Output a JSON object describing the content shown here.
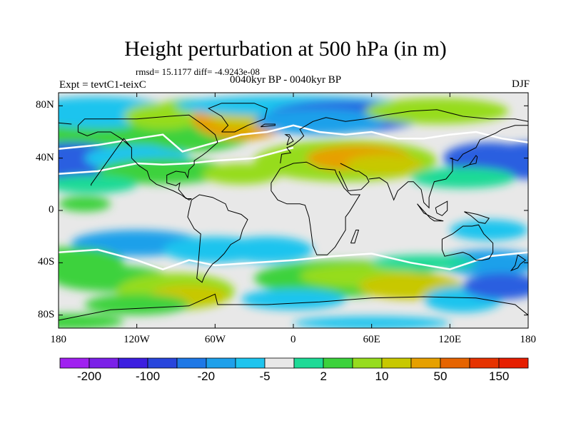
{
  "title": "Height perturbation at 500 hPa (in m)",
  "stats": "rmsd= 15.1177  diff= -4.9243e-08",
  "expt": "Expt = tevtC1-teixC",
  "period": "0040kyr BP - 0040kyr BP",
  "season": "DJF",
  "map": {
    "projection": "cylindrical equidistant",
    "lon_range": [
      -180,
      180
    ],
    "lat_range": [
      -90,
      90
    ],
    "x_ticks": [
      {
        "lon": -180,
        "label": "180"
      },
      {
        "lon": -120,
        "label": "120W"
      },
      {
        "lon": -60,
        "label": "60W"
      },
      {
        "lon": 0,
        "label": "0"
      },
      {
        "lon": 60,
        "label": "60E"
      },
      {
        "lon": 120,
        "label": "120E"
      },
      {
        "lon": 180,
        "label": "180"
      }
    ],
    "y_ticks": [
      {
        "lat": 80,
        "label": "80N"
      },
      {
        "lat": 40,
        "label": "40N"
      },
      {
        "lat": 0,
        "label": "0"
      },
      {
        "lat": -40,
        "label": "40S"
      },
      {
        "lat": -80,
        "label": "80S"
      }
    ]
  },
  "colorbar": {
    "colors": [
      "#a020f0",
      "#7b20e8",
      "#3c1ee0",
      "#2845dc",
      "#1e78e6",
      "#1ea0ea",
      "#1ec4ee",
      "#e8e8e8",
      "#1eda96",
      "#3cd23c",
      "#96dc1e",
      "#c8c800",
      "#e6a000",
      "#e66400",
      "#e63200",
      "#e61e00"
    ],
    "labels": [
      {
        "index": 1,
        "text": "-200"
      },
      {
        "index": 3,
        "text": "-100"
      },
      {
        "index": 5,
        "text": "-20"
      },
      {
        "index": 7,
        "text": "-5"
      },
      {
        "index": 9,
        "text": "2"
      },
      {
        "index": 11,
        "text": "10"
      },
      {
        "index": 13,
        "text": "50"
      },
      {
        "index": 15,
        "text": "150"
      }
    ]
  },
  "field_colors": {
    "neutral": "#e8e8e8",
    "blue": "#2c5fe0",
    "light_blue": "#1ea0ea",
    "cyan": "#1ec4ee",
    "green": "#3cd23c",
    "teal_green": "#1eda96",
    "yellow_green": "#96dc1e",
    "yellow": "#c8c800",
    "orange": "#e6a000",
    "white_contour": "#ffffff",
    "coast": "#000000"
  }
}
